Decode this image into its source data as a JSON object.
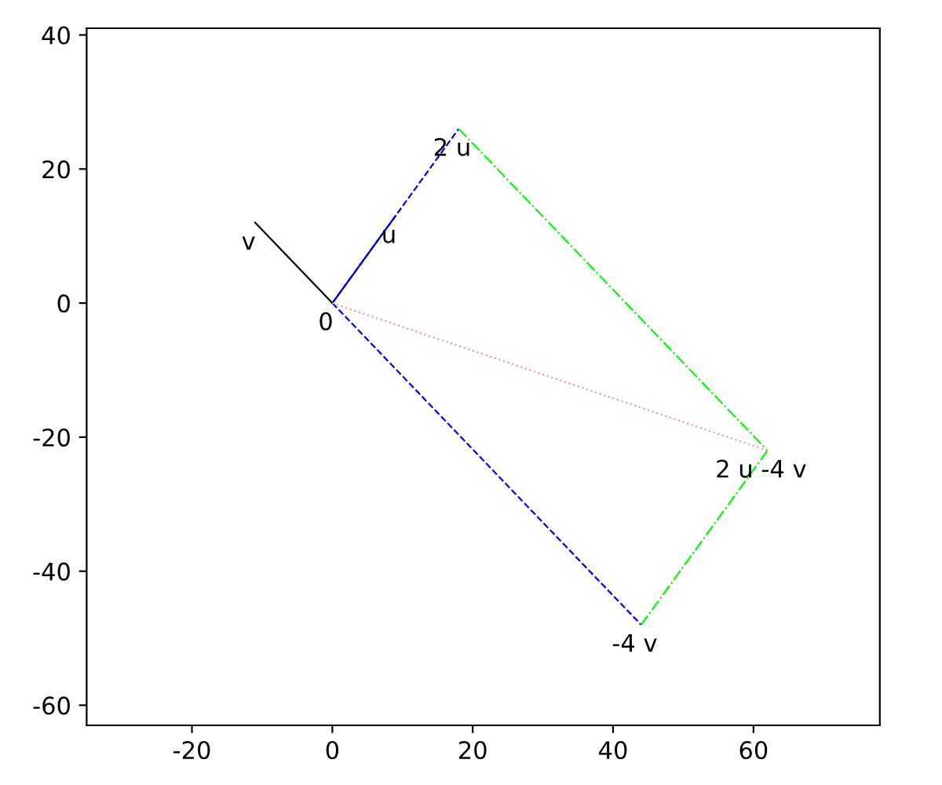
{
  "chart_data": {
    "type": "line",
    "series": [
      {
        "x": [
          0,
          9
        ],
        "values": [
          0,
          13
        ],
        "color": "#00008b",
        "line_style": "solid"
      },
      {
        "x": [
          0,
          -11
        ],
        "values": [
          0,
          12
        ],
        "color": "#000000",
        "line_style": "solid"
      },
      {
        "x": [
          0,
          18
        ],
        "values": [
          0,
          26
        ],
        "color": "#0000ff",
        "line_style": "dashed"
      },
      {
        "x": [
          0,
          44
        ],
        "values": [
          0,
          -48
        ],
        "color": "#0000ff",
        "line_style": "dashed"
      },
      {
        "x": [
          18,
          62
        ],
        "values": [
          26,
          -22
        ],
        "color": "#00ff00",
        "line_style": "dashdot"
      },
      {
        "x": [
          44,
          62
        ],
        "values": [
          -48,
          -22
        ],
        "color": "#00ff00",
        "line_style": "dashdot"
      },
      {
        "x": [
          0,
          62
        ],
        "values": [
          0,
          -22
        ],
        "color": "#ff9999",
        "line_style": "dotted"
      }
    ],
    "annotations": [
      {
        "text": "u",
        "x": 9,
        "y": 13
      },
      {
        "text": "v",
        "x": -11,
        "y": 12
      },
      {
        "text": "2 u",
        "x": 18,
        "y": 26
      },
      {
        "text": "-4 v",
        "x": 44,
        "y": -48
      },
      {
        "text": "2 u -4 v",
        "x": 62,
        "y": -22
      },
      {
        "text": "0",
        "x": 0,
        "y": 0
      }
    ],
    "xlim": [
      -35,
      78
    ],
    "ylim": [
      -63,
      41
    ],
    "xticks": [
      -20,
      0,
      20,
      40,
      60
    ],
    "yticks": [
      -60,
      -40,
      -20,
      0,
      20,
      40
    ],
    "grid": false
  }
}
